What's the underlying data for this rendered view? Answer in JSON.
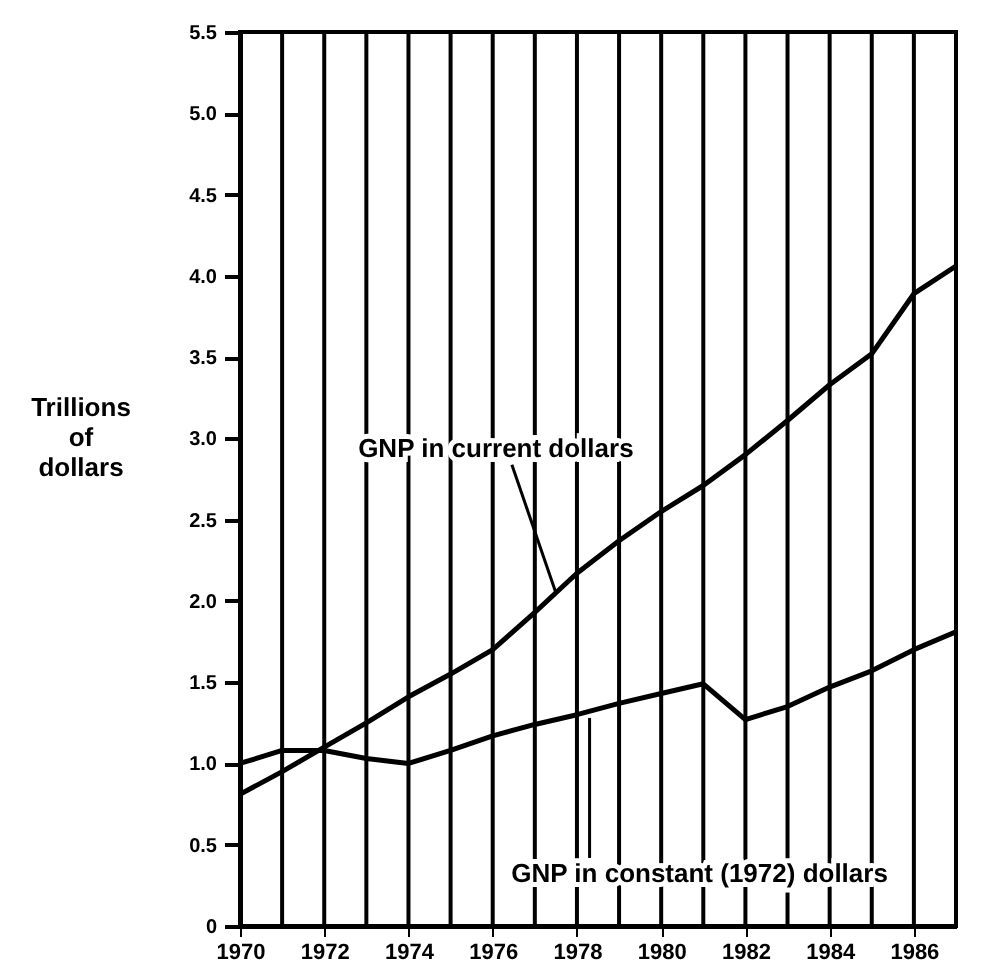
{
  "chart_data": {
    "type": "line",
    "ylabel": "Trillions of dollars",
    "x": [
      1970,
      1971,
      1972,
      1973,
      1974,
      1975,
      1976,
      1977,
      1978,
      1979,
      1980,
      1981,
      1982,
      1983,
      1984,
      1985,
      1986,
      1987
    ],
    "series": [
      {
        "color": "#000000",
        "values": [
          0.81,
          0.95,
          1.1,
          1.25,
          1.41,
          1.55,
          1.7,
          1.93,
          2.17,
          2.37,
          2.55,
          2.71,
          2.9,
          3.11,
          3.33,
          3.52,
          3.89,
          4.06
        ]
      },
      {
        "color": "#000000",
        "values": [
          1.0,
          1.08,
          1.08,
          1.03,
          1.0,
          1.08,
          1.17,
          1.24,
          1.3,
          1.37,
          1.43,
          1.49,
          1.27,
          1.35,
          1.47,
          1.57,
          1.7,
          1.81
        ]
      }
    ],
    "annotations": [
      {
        "text": "GNP in current dollars",
        "x": 1977.5,
        "y": 2.05
      },
      {
        "text": "GNP in constant (1972) dollars",
        "x": 1978.3,
        "y": 1.28
      }
    ],
    "xlim": [
      1970,
      1987
    ],
    "ylim": [
      0,
      5.5
    ],
    "xticks": [
      1970,
      {
        "value": 1971,
        "label": null
      },
      1972,
      {
        "value": 1973,
        "label": null
      },
      1974,
      {
        "value": 1975,
        "label": null
      },
      1976,
      {
        "value": 1977,
        "label": null
      },
      1978,
      {
        "value": 1979,
        "label": null
      },
      1980,
      {
        "value": 1981,
        "label": null
      },
      1982,
      {
        "value": 1983,
        "label": null
      },
      1984,
      {
        "value": 1985,
        "label": null
      },
      1986,
      {
        "value": 1987,
        "label": null
      }
    ],
    "yticks": [
      0,
      {
        "value": 0.5,
        "label": "0.5"
      },
      {
        "value": 1,
        "label": "1.0"
      },
      1.5,
      {
        "value": 2,
        "label": "2.0"
      },
      2.5,
      {
        "value": 3,
        "label": "3.0"
      },
      3.5,
      {
        "value": 4,
        "label": "4.0"
      },
      4.5,
      {
        "value": 5,
        "label": "5.0"
      },
      5.5
    ],
    "grid": "x",
    "marker": "none",
    "line_style": "solid"
  }
}
